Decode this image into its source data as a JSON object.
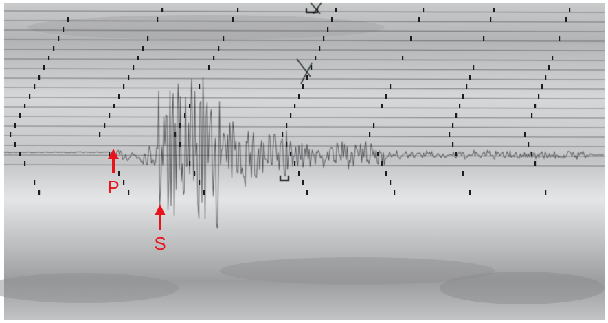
{
  "annotations": {
    "p_wave": "P",
    "s_wave": "S"
  }
}
